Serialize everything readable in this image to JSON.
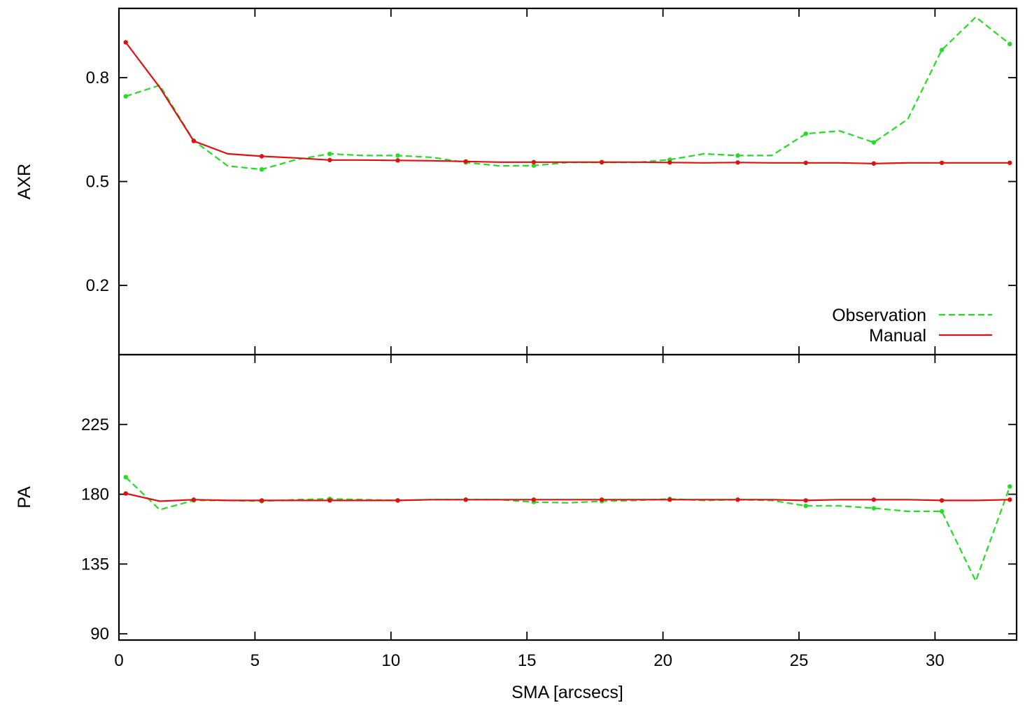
{
  "colors": {
    "observation": "#22dd22",
    "manual": "#e01010",
    "axis": "#000000"
  },
  "chart_data": [
    {
      "type": "line",
      "panel": "top",
      "xlabel": "",
      "ylabel": "AXR",
      "xlim": [
        0,
        33
      ],
      "ylim": [
        0.0,
        1.0
      ],
      "yticks": [
        0.2,
        0.5,
        0.8
      ],
      "ytick_labels": [
        "0.2",
        "0.5",
        "0.8"
      ],
      "xticks": [
        0,
        5,
        10,
        15,
        20,
        25,
        30
      ],
      "grid": false,
      "legend": {
        "position": "bottom-right",
        "entries": [
          "Observation",
          "Manual"
        ]
      },
      "series": [
        {
          "name": "Observation",
          "style": "dashed",
          "x": [
            0.25,
            1.5,
            2.75,
            4.0,
            5.25,
            6.5,
            7.75,
            9.0,
            10.25,
            11.5,
            12.75,
            14.0,
            15.25,
            16.5,
            17.75,
            19.0,
            20.25,
            21.5,
            22.75,
            24.0,
            25.25,
            26.5,
            27.75,
            29.0,
            30.25,
            31.5,
            32.75
          ],
          "y": [
            0.746,
            0.778,
            0.618,
            0.545,
            0.535,
            0.563,
            0.58,
            0.575,
            0.575,
            0.57,
            0.555,
            0.545,
            0.546,
            0.555,
            0.555,
            0.555,
            0.563,
            0.58,
            0.575,
            0.575,
            0.638,
            0.646,
            0.613,
            0.68,
            0.88,
            0.975,
            0.897
          ]
        },
        {
          "name": "Manual",
          "style": "solid",
          "x": [
            0.25,
            1.5,
            2.75,
            4.0,
            5.25,
            6.5,
            7.75,
            9.0,
            10.25,
            11.5,
            12.75,
            14.0,
            15.25,
            16.5,
            17.75,
            19.0,
            20.25,
            21.5,
            22.75,
            24.0,
            25.25,
            26.5,
            27.75,
            29.0,
            30.25,
            31.5,
            32.75
          ],
          "y": [
            0.902,
            0.772,
            0.617,
            0.58,
            0.573,
            0.568,
            0.562,
            0.562,
            0.561,
            0.56,
            0.558,
            0.556,
            0.556,
            0.556,
            0.556,
            0.556,
            0.555,
            0.554,
            0.555,
            0.554,
            0.554,
            0.554,
            0.552,
            0.554,
            0.554,
            0.554,
            0.554
          ]
        }
      ]
    },
    {
      "type": "line",
      "panel": "bottom",
      "xlabel": "SMA [arcsecs]",
      "ylabel": "PA",
      "xlim": [
        0,
        33
      ],
      "ylim": [
        86,
        270
      ],
      "yticks": [
        90,
        135,
        180,
        225
      ],
      "ytick_labels": [
        "90",
        "135",
        "180",
        "225"
      ],
      "xticks": [
        0,
        5,
        10,
        15,
        20,
        25,
        30
      ],
      "xtick_labels": [
        "0",
        "5",
        "10",
        "15",
        "20",
        "25",
        "30"
      ],
      "grid": false,
      "series": [
        {
          "name": "Observation",
          "style": "dashed",
          "x": [
            0.25,
            1.5,
            2.75,
            4.0,
            5.25,
            6.5,
            7.75,
            9.0,
            10.25,
            11.5,
            12.75,
            14.0,
            15.25,
            16.5,
            17.75,
            19.0,
            20.25,
            21.5,
            22.75,
            24.0,
            25.25,
            26.5,
            27.75,
            29.0,
            30.25,
            31.5,
            32.75
          ],
          "y": [
            191,
            170,
            176,
            176,
            175.5,
            176.5,
            177,
            176.5,
            176,
            176.5,
            176.5,
            176.5,
            175,
            174.5,
            175.5,
            176,
            177,
            176,
            176.5,
            176,
            172.5,
            172.5,
            171,
            169,
            169,
            124,
            185
          ]
        },
        {
          "name": "Manual",
          "style": "solid",
          "x": [
            0.25,
            1.5,
            2.75,
            4.0,
            5.25,
            6.5,
            7.75,
            9.0,
            10.25,
            11.5,
            12.75,
            14.0,
            15.25,
            16.5,
            17.75,
            19.0,
            20.25,
            21.5,
            22.75,
            24.0,
            25.25,
            26.5,
            27.75,
            29.0,
            30.25,
            31.5,
            32.75
          ],
          "y": [
            180.5,
            175.5,
            176.5,
            176,
            176,
            176,
            176,
            176,
            176,
            176.5,
            176.5,
            176.5,
            176.5,
            176.5,
            176.5,
            176.5,
            176.5,
            176.5,
            176.5,
            176.5,
            176,
            176.5,
            176.5,
            176.5,
            176,
            176,
            176.5
          ]
        }
      ]
    }
  ]
}
